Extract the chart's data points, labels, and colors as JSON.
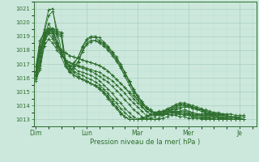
{
  "xlabel": "Pression niveau de la mer( hPa )",
  "background_color": "#cce8dc",
  "grid_color_major": "#a0c8b8",
  "grid_color_minor": "#b8d8cc",
  "line_color": "#2d6e2d",
  "ylim": [
    1012.5,
    1021.5
  ],
  "yticks": [
    1013,
    1014,
    1015,
    1016,
    1017,
    1018,
    1019,
    1020,
    1021
  ],
  "x_day_labels": [
    "Dim",
    "Lun",
    "Mar",
    "Mer",
    "Je"
  ],
  "x_day_positions": [
    0,
    12,
    24,
    36,
    48
  ],
  "xlim": [
    -0.5,
    52
  ],
  "series": [
    [
      1015.8,
      1016.6,
      1018.3,
      1018.8,
      1018.5,
      1018.0,
      1017.6,
      1017.3,
      1017.1,
      1017.0,
      1016.9,
      1016.8,
      1016.7,
      1016.6,
      1016.5,
      1016.4,
      1016.2,
      1016.0,
      1015.8,
      1015.5,
      1015.2,
      1014.9,
      1014.5,
      1014.2,
      1013.9,
      1013.6,
      1013.3,
      1013.1,
      1013.0,
      1013.0,
      1013.1,
      1013.2,
      1013.4,
      1013.5,
      1013.6,
      1013.7,
      1013.6,
      1013.5,
      1013.4,
      1013.4,
      1013.4,
      1013.4,
      1013.4,
      1013.4,
      1013.4,
      1013.4,
      1013.4,
      1013.3,
      1013.3,
      1013.3
    ],
    [
      1015.9,
      1016.7,
      1018.5,
      1019.2,
      1018.8,
      1018.2,
      1017.7,
      1017.3,
      1017.1,
      1016.9,
      1016.8,
      1016.7,
      1016.6,
      1016.5,
      1016.3,
      1016.1,
      1015.9,
      1015.7,
      1015.4,
      1015.1,
      1014.8,
      1014.4,
      1014.1,
      1013.7,
      1013.5,
      1013.2,
      1013.0,
      1013.0,
      1013.0,
      1013.1,
      1013.3,
      1013.4,
      1013.5,
      1013.6,
      1013.6,
      1013.6,
      1013.5,
      1013.5,
      1013.4,
      1013.3,
      1013.3,
      1013.3,
      1013.3,
      1013.3,
      1013.3,
      1013.2,
      1013.2,
      1013.2,
      1013.2,
      1013.2
    ],
    [
      1016.0,
      1016.9,
      1018.6,
      1019.4,
      1019.0,
      1018.3,
      1017.7,
      1017.2,
      1016.9,
      1016.7,
      1016.5,
      1016.4,
      1016.3,
      1016.2,
      1016.0,
      1015.8,
      1015.5,
      1015.2,
      1014.9,
      1014.5,
      1014.2,
      1013.8,
      1013.5,
      1013.2,
      1013.0,
      1013.0,
      1013.0,
      1013.1,
      1013.2,
      1013.4,
      1013.5,
      1013.6,
      1013.6,
      1013.6,
      1013.5,
      1013.5,
      1013.4,
      1013.4,
      1013.3,
      1013.3,
      1013.2,
      1013.2,
      1013.2,
      1013.2,
      1013.1,
      1013.1,
      1013.1,
      1013.1,
      1013.1,
      1013.0
    ],
    [
      1016.1,
      1017.2,
      1018.8,
      1019.6,
      1019.2,
      1018.5,
      1017.8,
      1017.2,
      1016.8,
      1016.5,
      1016.3,
      1016.2,
      1016.0,
      1015.9,
      1015.7,
      1015.5,
      1015.2,
      1014.9,
      1014.5,
      1014.2,
      1013.8,
      1013.5,
      1013.2,
      1013.0,
      1013.0,
      1013.0,
      1013.1,
      1013.3,
      1013.4,
      1013.5,
      1013.6,
      1013.6,
      1013.6,
      1013.5,
      1013.5,
      1013.4,
      1013.4,
      1013.3,
      1013.3,
      1013.2,
      1013.2,
      1013.2,
      1013.1,
      1013.1,
      1013.1,
      1013.0,
      1013.0,
      1013.0,
      1013.0,
      1013.0
    ],
    [
      1016.2,
      1017.5,
      1019.0,
      1019.9,
      1019.4,
      1018.6,
      1017.9,
      1017.2,
      1016.7,
      1016.4,
      1016.1,
      1015.9,
      1015.8,
      1015.6,
      1015.4,
      1015.2,
      1014.9,
      1014.5,
      1014.1,
      1013.8,
      1013.4,
      1013.2,
      1013.0,
      1013.0,
      1013.0,
      1013.1,
      1013.2,
      1013.4,
      1013.5,
      1013.6,
      1013.6,
      1013.6,
      1013.5,
      1013.5,
      1013.4,
      1013.3,
      1013.3,
      1013.2,
      1013.2,
      1013.1,
      1013.1,
      1013.1,
      1013.0,
      1013.0,
      1013.0,
      1013.0,
      1013.0,
      1013.0,
      1013.0,
      1013.0
    ],
    [
      1016.0,
      1017.2,
      1019.3,
      1020.5,
      1020.8,
      1019.5,
      1018.0,
      1017.0,
      1016.5,
      1016.2,
      1016.0,
      1015.9,
      1015.7,
      1015.6,
      1015.4,
      1015.2,
      1014.9,
      1014.6,
      1014.2,
      1013.9,
      1013.5,
      1013.2,
      1013.0,
      1013.0,
      1013.0,
      1013.1,
      1013.2,
      1013.3,
      1013.4,
      1013.5,
      1013.5,
      1013.5,
      1013.5,
      1013.4,
      1013.4,
      1013.3,
      1013.3,
      1013.2,
      1013.2,
      1013.1,
      1013.1,
      1013.1,
      1013.0,
      1013.0,
      1013.0,
      1013.0,
      1013.0,
      1013.0,
      1013.0,
      1013.0
    ],
    [
      1016.3,
      1018.3,
      1019.5,
      1020.9,
      1021.0,
      1019.0,
      1017.5,
      1016.8,
      1016.4,
      1016.2,
      1016.0,
      1015.9,
      1015.8,
      1015.6,
      1015.5,
      1015.3,
      1015.0,
      1014.7,
      1014.3,
      1013.9,
      1013.5,
      1013.2,
      1013.0,
      1013.0,
      1013.0,
      1013.1,
      1013.2,
      1013.3,
      1013.4,
      1013.4,
      1013.4,
      1013.4,
      1013.3,
      1013.3,
      1013.2,
      1013.2,
      1013.1,
      1013.1,
      1013.1,
      1013.0,
      1013.0,
      1013.0,
      1013.0,
      1013.0,
      1013.0,
      1013.0,
      1013.0,
      1013.0,
      1013.0,
      1013.0
    ],
    [
      1016.5,
      1018.7,
      1019.3,
      1019.6,
      1019.5,
      1018.5,
      1018.0,
      1017.8,
      1017.6,
      1017.5,
      1017.4,
      1017.3,
      1017.2,
      1017.1,
      1017.0,
      1016.9,
      1016.7,
      1016.5,
      1016.2,
      1015.9,
      1015.6,
      1015.3,
      1014.9,
      1014.5,
      1014.2,
      1013.9,
      1013.6,
      1013.4,
      1013.3,
      1013.3,
      1013.4,
      1013.5,
      1013.7,
      1013.8,
      1013.9,
      1013.9,
      1013.9,
      1013.8,
      1013.7,
      1013.7,
      1013.6,
      1013.5,
      1013.5,
      1013.4,
      1013.3,
      1013.2,
      1013.2,
      1013.1,
      1013.1,
      1013.0
    ],
    [
      1016.8,
      1018.7,
      1019.2,
      1019.5,
      1019.4,
      1018.5,
      1018.0,
      1017.8,
      1017.6,
      1017.5,
      1017.4,
      1017.3,
      1017.2,
      1017.1,
      1017.0,
      1016.9,
      1016.7,
      1016.5,
      1016.2,
      1015.9,
      1015.6,
      1015.3,
      1015.0,
      1014.7,
      1014.4,
      1014.1,
      1013.8,
      1013.6,
      1013.4,
      1013.3,
      1013.3,
      1013.4,
      1013.5,
      1013.7,
      1013.8,
      1013.9,
      1013.9,
      1013.9,
      1013.8,
      1013.7,
      1013.7,
      1013.6,
      1013.5,
      1013.5,
      1013.4,
      1013.3,
      1013.2,
      1013.2,
      1013.1,
      1013.0
    ],
    [
      1016.2,
      1017.8,
      1018.9,
      1019.3,
      1019.4,
      1019.2,
      1019.1,
      1017.0,
      1016.5,
      1016.8,
      1017.2,
      1018.0,
      1018.5,
      1018.7,
      1018.7,
      1018.6,
      1018.4,
      1018.1,
      1017.7,
      1017.3,
      1016.8,
      1016.2,
      1015.7,
      1015.1,
      1014.6,
      1014.2,
      1013.8,
      1013.6,
      1013.4,
      1013.4,
      1013.5,
      1013.7,
      1013.8,
      1014.0,
      1014.1,
      1014.1,
      1014.0,
      1013.9,
      1013.8,
      1013.7,
      1013.5,
      1013.4,
      1013.3,
      1013.2,
      1013.1,
      1013.0,
      1013.0,
      1013.0,
      1013.0,
      1013.0
    ],
    [
      1016.4,
      1018.0,
      1019.0,
      1019.4,
      1019.5,
      1019.3,
      1019.2,
      1017.2,
      1016.8,
      1017.0,
      1017.5,
      1018.2,
      1018.7,
      1018.9,
      1018.9,
      1018.7,
      1018.5,
      1018.2,
      1017.8,
      1017.4,
      1016.9,
      1016.4,
      1015.8,
      1015.2,
      1014.7,
      1014.3,
      1013.9,
      1013.7,
      1013.5,
      1013.5,
      1013.6,
      1013.7,
      1013.9,
      1014.0,
      1014.1,
      1014.1,
      1014.0,
      1013.9,
      1013.8,
      1013.7,
      1013.5,
      1013.4,
      1013.3,
      1013.2,
      1013.1,
      1013.0,
      1013.0,
      1013.0,
      1013.0,
      1013.0
    ],
    [
      1016.2,
      1017.9,
      1018.8,
      1019.2,
      1019.3,
      1019.1,
      1019.0,
      1016.9,
      1016.4,
      1016.7,
      1017.1,
      1017.9,
      1018.4,
      1018.6,
      1018.7,
      1018.5,
      1018.3,
      1018.0,
      1017.6,
      1017.2,
      1016.7,
      1016.1,
      1015.5,
      1014.9,
      1014.4,
      1014.0,
      1013.6,
      1013.4,
      1013.3,
      1013.3,
      1013.4,
      1013.6,
      1013.7,
      1013.9,
      1014.0,
      1014.0,
      1013.9,
      1013.8,
      1013.7,
      1013.6,
      1013.4,
      1013.3,
      1013.2,
      1013.1,
      1013.0,
      1013.0,
      1013.0,
      1013.0,
      1013.0,
      1013.0
    ],
    [
      1016.5,
      1018.2,
      1019.1,
      1019.5,
      1019.6,
      1019.4,
      1019.3,
      1017.3,
      1016.8,
      1017.1,
      1017.5,
      1018.3,
      1018.8,
      1019.0,
      1019.0,
      1018.9,
      1018.6,
      1018.3,
      1017.9,
      1017.5,
      1017.0,
      1016.4,
      1015.8,
      1015.2,
      1014.7,
      1014.3,
      1013.9,
      1013.7,
      1013.5,
      1013.5,
      1013.6,
      1013.8,
      1013.9,
      1014.1,
      1014.2,
      1014.2,
      1014.1,
      1014.0,
      1013.9,
      1013.8,
      1013.6,
      1013.5,
      1013.4,
      1013.3,
      1013.2,
      1013.1,
      1013.0,
      1013.0,
      1013.0,
      1013.0
    ]
  ]
}
